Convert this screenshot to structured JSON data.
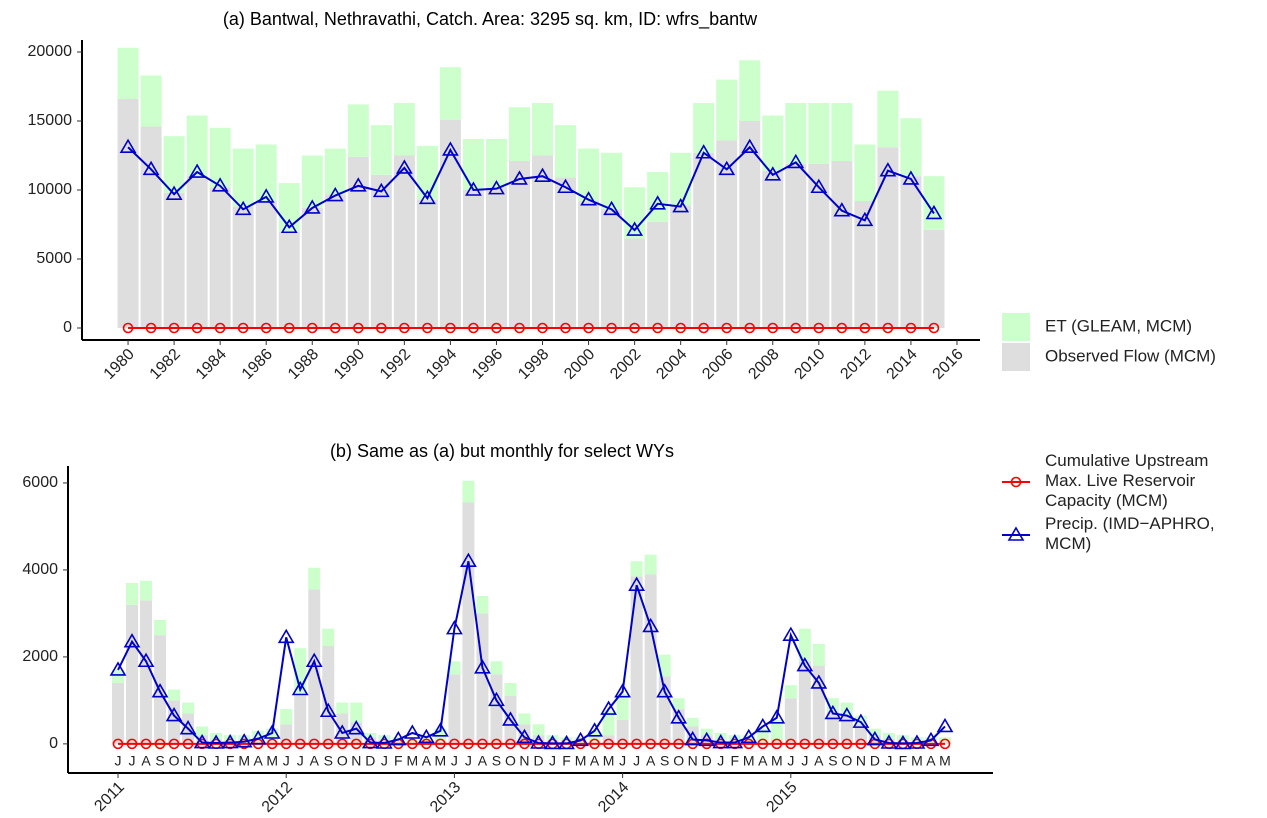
{
  "chart_data": [
    {
      "type": "bar",
      "title": "(a) Bantwal, Nethravathi, Catch. Area: 3295 sq. km, ID: wfrs_bantw",
      "x": [
        1980,
        1981,
        1982,
        1983,
        1984,
        1985,
        1986,
        1987,
        1988,
        1989,
        1990,
        1991,
        1992,
        1993,
        1994,
        1995,
        1996,
        1997,
        1998,
        1999,
        2000,
        2001,
        2002,
        2003,
        2004,
        2005,
        2006,
        2007,
        2008,
        2009,
        2010,
        2011,
        2012,
        2013,
        2014,
        2015
      ],
      "xlim": [
        1978.0,
        2017.0
      ],
      "xticks": [
        1980,
        1982,
        1984,
        1986,
        1988,
        1990,
        1992,
        1994,
        1996,
        1998,
        2000,
        2002,
        2004,
        2006,
        2008,
        2010,
        2012,
        2014,
        2016
      ],
      "ylim": [
        -870,
        20870
      ],
      "yticks": [
        0,
        5000,
        10000,
        15000,
        20000
      ],
      "series": [
        {
          "name": "Observed Flow (MCM)",
          "color": "#dedede",
          "values": [
            16600,
            14600,
            9800,
            11000,
            10200,
            8800,
            9200,
            7000,
            8700,
            9700,
            12400,
            11100,
            12500,
            9300,
            15100,
            10000,
            10200,
            12100,
            12500,
            10900,
            9200,
            8600,
            6500,
            7700,
            8900,
            12700,
            13600,
            15000,
            11400,
            11900,
            11900,
            12100,
            9200,
            13100,
            11000,
            7100
          ]
        },
        {
          "name": "ET (GLEAM, MCM)",
          "color": "#ccffcc",
          "values": [
            3700,
            3700,
            4100,
            4400,
            4300,
            4200,
            4100,
            3500,
            3800,
            3300,
            3800,
            3600,
            3800,
            3900,
            3800,
            3700,
            3500,
            3900,
            3800,
            3800,
            3800,
            4100,
            3700,
            3600,
            3800,
            3600,
            4400,
            4400,
            4000,
            4400,
            4400,
            4200,
            4100,
            4100,
            4200,
            3900
          ]
        },
        {
          "name": "Cumulative Upstream\nMax. Live Reservoir\nCapacity (MCM)",
          "color": "#ff0000",
          "marker": "circle",
          "values": [
            0,
            0,
            0,
            0,
            0,
            0,
            0,
            0,
            0,
            0,
            0,
            0,
            0,
            0,
            0,
            0,
            0,
            0,
            0,
            0,
            0,
            0,
            0,
            0,
            0,
            0,
            0,
            0,
            0,
            0,
            0,
            0,
            0,
            0,
            0,
            0
          ]
        },
        {
          "name": "Precip. (IMD−APHRO,\nMCM)",
          "color": "#0000cc",
          "marker": "triangle",
          "values": [
            13100,
            11500,
            9700,
            11300,
            10300,
            8600,
            9500,
            7300,
            8700,
            9600,
            10300,
            9900,
            11600,
            9400,
            12900,
            10000,
            10100,
            10800,
            11000,
            10200,
            9300,
            8600,
            7100,
            9000,
            8800,
            12700,
            11500,
            13100,
            11100,
            12000,
            10200,
            8500,
            7800,
            11400,
            10800,
            8300
          ]
        }
      ]
    },
    {
      "type": "bar",
      "title": "(b) Same as (a) but monthly for select WYs",
      "categories": [
        "J",
        "J",
        "A",
        "S",
        "O",
        "N",
        "D",
        "J",
        "F",
        "M",
        "A",
        "M",
        "J",
        "J",
        "A",
        "S",
        "O",
        "N",
        "D",
        "J",
        "F",
        "M",
        "A",
        "M",
        "J",
        "J",
        "A",
        "S",
        "O",
        "N",
        "D",
        "J",
        "F",
        "M",
        "A",
        "M",
        "J",
        "J",
        "A",
        "S",
        "O",
        "N",
        "D",
        "J",
        "F",
        "M",
        "A",
        "M",
        "J",
        "J",
        "A",
        "S",
        "O",
        "N",
        "D",
        "J",
        "F",
        "M",
        "A",
        "M"
      ],
      "xticks": [
        {
          "value": 0,
          "label": "2011"
        },
        {
          "value": 12,
          "label": "2012"
        },
        {
          "value": 24,
          "label": "2013"
        },
        {
          "value": 36,
          "label": "2014"
        },
        {
          "value": 48,
          "label": "2015"
        }
      ],
      "ylim": [
        -670,
        6390
      ],
      "yticks": [
        0,
        2000,
        4000,
        6000
      ],
      "series": [
        {
          "color": "#dedede",
          "values": [
            1400,
            3200,
            3300,
            2500,
            1000,
            700,
            200,
            100,
            50,
            30,
            30,
            50,
            450,
            1100,
            3550,
            2250,
            700,
            500,
            150,
            80,
            40,
            30,
            30,
            50,
            1600,
            5550,
            3000,
            1600,
            1100,
            450,
            200,
            80,
            40,
            30,
            50,
            200,
            550,
            3850,
            3900,
            1550,
            800,
            400,
            200,
            80,
            40,
            30,
            50,
            100,
            1050,
            1900,
            1800,
            750,
            650,
            450,
            200,
            100,
            50,
            30,
            30,
            50
          ]
        },
        {
          "color": "#ccffcc",
          "values": [
            300,
            500,
            450,
            350,
            250,
            250,
            200,
            150,
            150,
            170,
            270,
            300,
            350,
            1100,
            500,
            400,
            250,
            450,
            100,
            120,
            110,
            120,
            170,
            300,
            300,
            500,
            400,
            300,
            300,
            250,
            250,
            120,
            110,
            120,
            250,
            550,
            600,
            350,
            450,
            500,
            250,
            200,
            150,
            170,
            160,
            170,
            300,
            450,
            300,
            750,
            500,
            300,
            300,
            200,
            150,
            150,
            150,
            120,
            120,
            100
          ]
        },
        {
          "color": "#ff0000",
          "marker": "circle",
          "values": [
            0,
            0,
            0,
            0,
            0,
            0,
            0,
            0,
            0,
            0,
            0,
            0,
            0,
            0,
            0,
            0,
            0,
            0,
            0,
            0,
            0,
            0,
            0,
            0,
            0,
            0,
            0,
            0,
            0,
            0,
            0,
            0,
            0,
            0,
            0,
            0,
            0,
            0,
            0,
            0,
            0,
            0,
            0,
            0,
            0,
            0,
            0,
            0,
            0,
            0,
            0,
            0,
            0,
            0,
            0,
            0,
            0,
            0,
            0,
            0
          ]
        },
        {
          "color": "#0000cc",
          "marker": "triangle",
          "values": [
            1700,
            2350,
            1900,
            1200,
            650,
            350,
            30,
            20,
            30,
            50,
            120,
            250,
            2450,
            1250,
            1900,
            750,
            250,
            350,
            30,
            20,
            100,
            250,
            150,
            300,
            2650,
            4200,
            1750,
            1000,
            550,
            150,
            20,
            10,
            10,
            80,
            300,
            800,
            1200,
            3650,
            2700,
            1200,
            600,
            100,
            80,
            30,
            30,
            150,
            400,
            600,
            2500,
            1800,
            1400,
            700,
            650,
            500,
            100,
            20,
            10,
            20,
            80,
            400
          ]
        }
      ]
    }
  ]
}
